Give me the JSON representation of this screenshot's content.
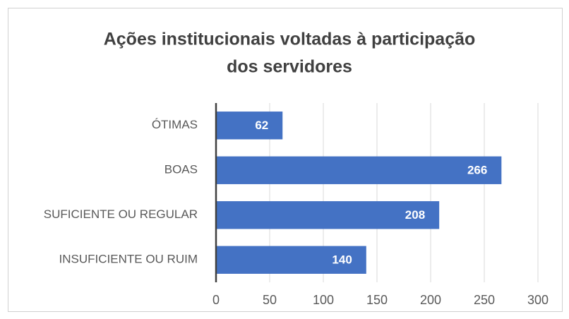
{
  "chart_data": {
    "type": "bar",
    "orientation": "horizontal",
    "title": [
      "Ações institucionais voltadas à participação",
      "dos servidores"
    ],
    "categories": [
      "ÓTIMAS",
      "BOAS",
      "SUFICIENTE OU REGULAR",
      "INSUFICIENTE OU RUIM"
    ],
    "values": [
      62,
      266,
      208,
      140
    ],
    "color": "#4472c4",
    "xlim": [
      0,
      300
    ],
    "xticks": [
      0,
      50,
      100,
      150,
      200,
      250,
      300
    ],
    "grid": true
  }
}
